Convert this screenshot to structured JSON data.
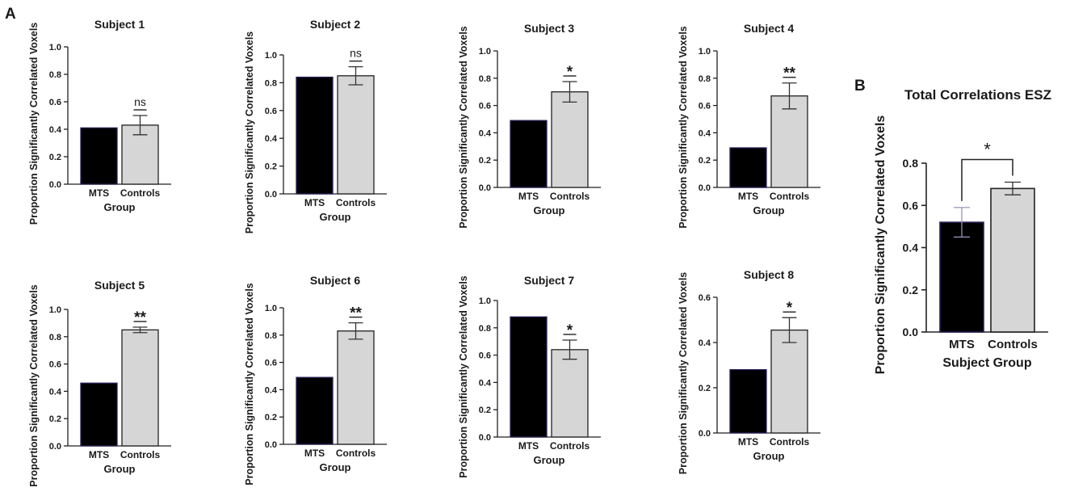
{
  "panel_labels": {
    "a": "A",
    "b": "B"
  },
  "colors": {
    "mts_fill": "#000000",
    "mts_edge": "#2a1e55",
    "controls_fill": "#d6d6d6",
    "axis": "#222222"
  },
  "chart_data": [
    {
      "id": "s1",
      "type": "bar",
      "title": "Subject 1",
      "ylabel": "Proportion Significantly Correlated Voxels",
      "xlabel": "Group",
      "categories": [
        "MTS",
        "Controls"
      ],
      "values": [
        0.41,
        0.43
      ],
      "error": [
        0,
        0.07
      ],
      "ylim": [
        0,
        1.0
      ],
      "yticks": [
        "0.0",
        "0.2",
        "0.4",
        "0.6",
        "0.8",
        "1.0"
      ],
      "significance": "ns",
      "legend": "none"
    },
    {
      "id": "s2",
      "type": "bar",
      "title": "Subject 2",
      "ylabel": "Proportion Significantly Correlated Voxels",
      "xlabel": "Group",
      "categories": [
        "MTS",
        "Controls"
      ],
      "values": [
        0.84,
        0.85
      ],
      "error": [
        0,
        0.065
      ],
      "ylim": [
        0,
        1.0
      ],
      "yticks": [
        "0.0",
        "0.2",
        "0.4",
        "0.6",
        "0.8",
        "1.0"
      ],
      "significance": "ns",
      "legend": "none"
    },
    {
      "id": "s3",
      "type": "bar",
      "title": "Subject 3",
      "ylabel": "Proportion Significantly Correlated Voxels",
      "xlabel": "Group",
      "categories": [
        "MTS",
        "Controls"
      ],
      "values": [
        0.49,
        0.7
      ],
      "error": [
        0,
        0.075
      ],
      "ylim": [
        0,
        1.0
      ],
      "yticks": [
        "0.0",
        "0.2",
        "0.4",
        "0.6",
        "0.8",
        "1.0"
      ],
      "significance": "*",
      "legend": "none"
    },
    {
      "id": "s4",
      "type": "bar",
      "title": "Subject 4",
      "ylabel": "Proportion Significantly Correlated Voxels",
      "xlabel": "Group",
      "categories": [
        "MTS",
        "Controls"
      ],
      "values": [
        0.29,
        0.67
      ],
      "error": [
        0,
        0.095
      ],
      "ylim": [
        0,
        1.0
      ],
      "yticks": [
        "0.0",
        "0.2",
        "0.4",
        "0.6",
        "0.8",
        "1.0"
      ],
      "significance": "**",
      "legend": "none"
    },
    {
      "id": "s5",
      "type": "bar",
      "title": "Subject 5",
      "ylabel": "Proportion Significantly Correlated Voxels",
      "xlabel": "Group",
      "categories": [
        "MTS",
        "Controls"
      ],
      "values": [
        0.46,
        0.85
      ],
      "error": [
        0,
        0.02
      ],
      "ylim": [
        0,
        1.0
      ],
      "yticks": [
        "0.0",
        "0.2",
        "0.4",
        "0.6",
        "0.8",
        "1.0"
      ],
      "significance": "**",
      "legend": "none"
    },
    {
      "id": "s6",
      "type": "bar",
      "title": "Subject 6",
      "ylabel": "Proportion Significantly Correlated Voxels",
      "xlabel": "Group",
      "categories": [
        "MTS",
        "Controls"
      ],
      "values": [
        0.49,
        0.83
      ],
      "error": [
        0,
        0.06
      ],
      "ylim": [
        0,
        1.0
      ],
      "yticks": [
        "0.0",
        "0.2",
        "0.4",
        "0.6",
        "0.8",
        "1.0"
      ],
      "significance": "**",
      "legend": "none"
    },
    {
      "id": "s7",
      "type": "bar",
      "title": "Subject 7",
      "ylabel": "Proportion Significantly Correlated Voxels",
      "xlabel": "Group",
      "categories": [
        "MTS",
        "Controls"
      ],
      "values": [
        0.88,
        0.64
      ],
      "error": [
        0,
        0.07
      ],
      "ylim": [
        0,
        1.0
      ],
      "yticks": [
        "0.0",
        "0.2",
        "0.4",
        "0.6",
        "0.8",
        "1.0"
      ],
      "significance": "*",
      "legend": "none"
    },
    {
      "id": "s8",
      "type": "bar",
      "title": "Subject 8",
      "ylabel": "Proportion Significantly Correlated Voxels",
      "xlabel": "Group",
      "categories": [
        "MTS",
        "Controls"
      ],
      "values": [
        0.28,
        0.455
      ],
      "error": [
        0,
        0.055
      ],
      "ylim": [
        0,
        0.6
      ],
      "yticks": [
        "0.0",
        "0.2",
        "0.4",
        "0.6"
      ],
      "significance": "*",
      "legend": "none"
    },
    {
      "id": "total",
      "type": "bar",
      "title": "Total Correlations ESZ",
      "ylabel": "Proportion Significantly Correlated Voxels",
      "xlabel": "Subject Group",
      "categories": [
        "MTS",
        "Controls"
      ],
      "values": [
        0.52,
        0.68
      ],
      "error": [
        0.07,
        0.03
      ],
      "ylim": [
        0,
        0.8
      ],
      "yticks": [
        "0.0",
        "0.2",
        "0.4",
        "0.6",
        "0.8"
      ],
      "significance": "*",
      "legend": "none"
    }
  ]
}
